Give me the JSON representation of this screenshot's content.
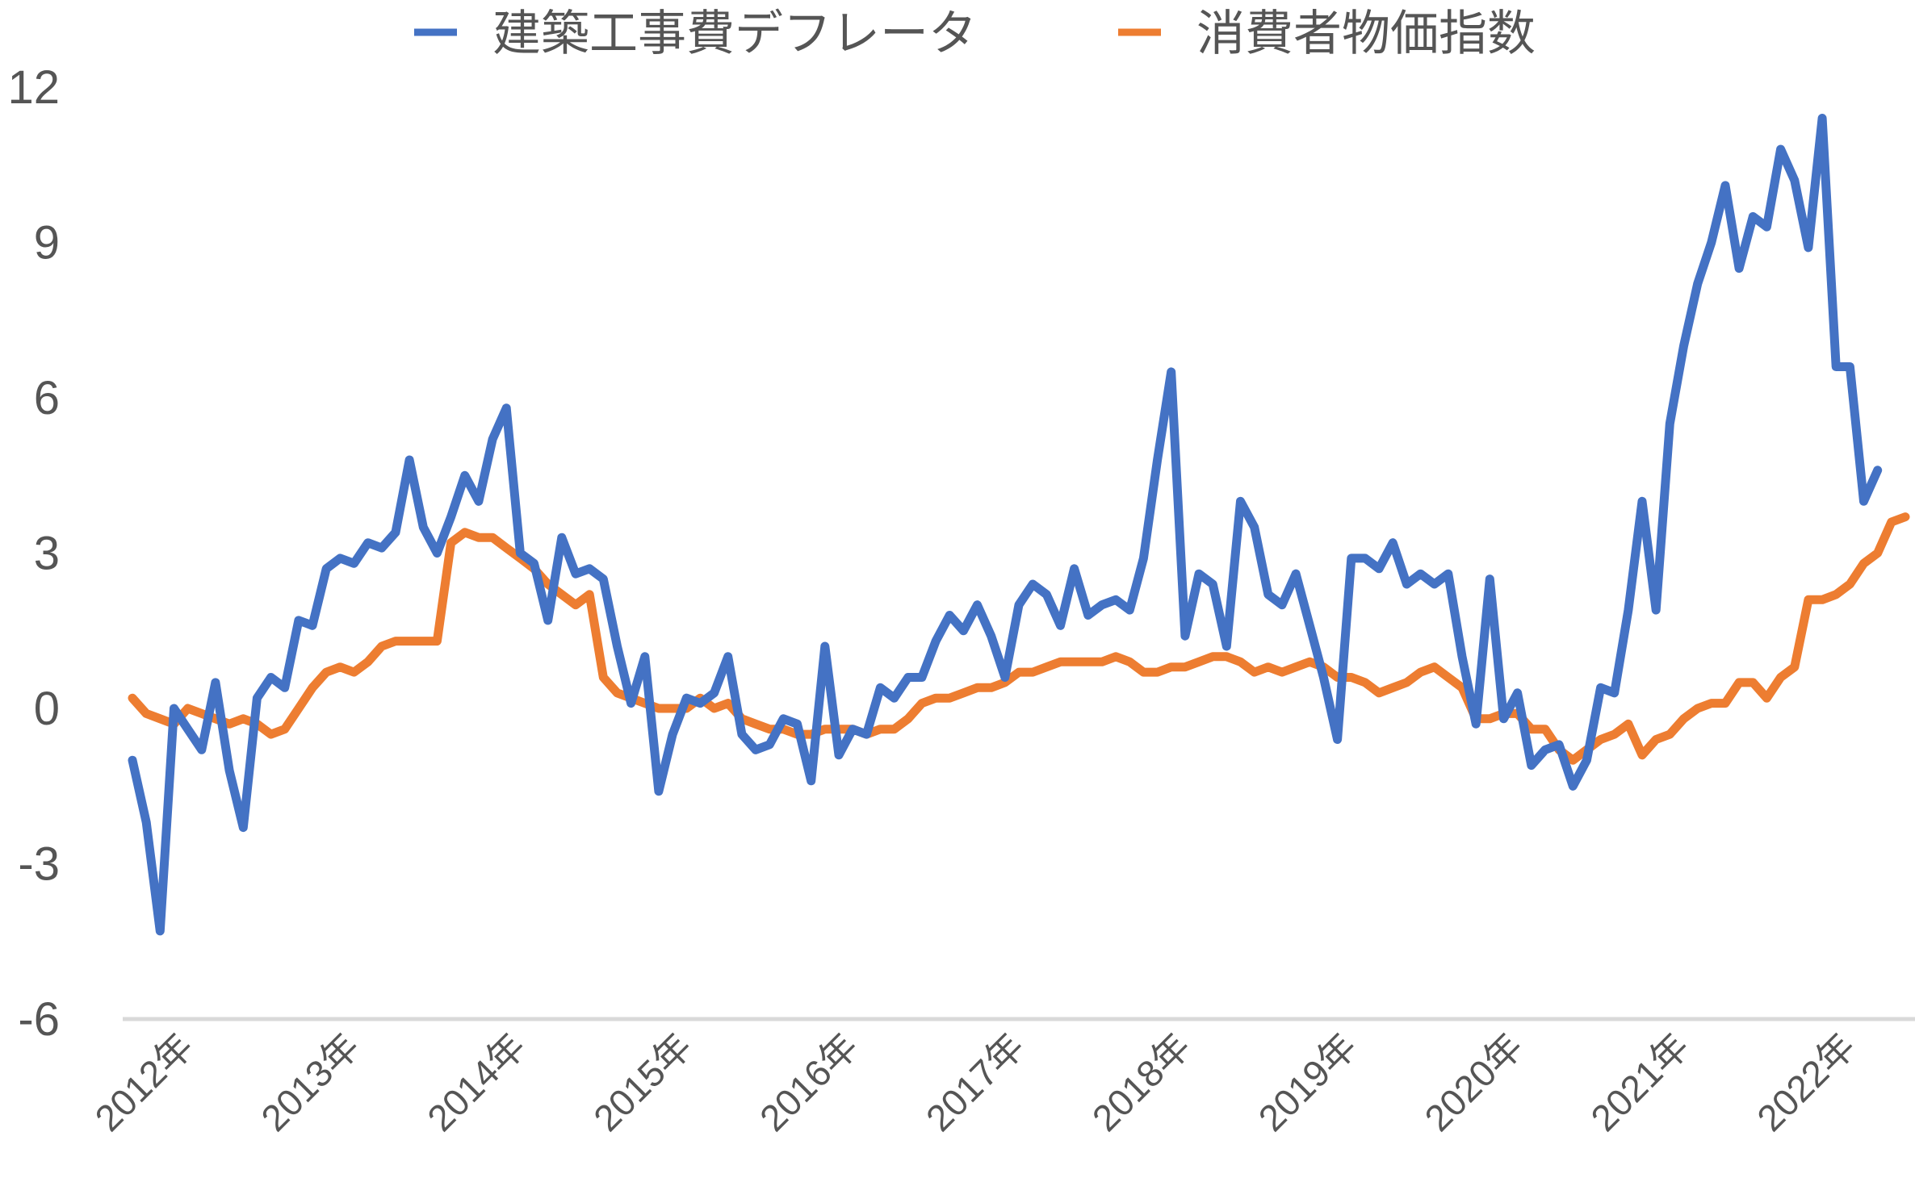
{
  "chart_data": {
    "type": "line",
    "title": "",
    "xlabel": "",
    "ylabel": "",
    "ylim": [
      -6,
      12
    ],
    "yticks": [
      "12",
      "9",
      "6",
      "3",
      "0",
      "-3",
      "-6"
    ],
    "ytick_values": [
      12,
      9,
      6,
      3,
      0,
      -3,
      -6
    ],
    "xtick_labels": [
      "2012年",
      "2013年",
      "2014年",
      "2015年",
      "2016年",
      "2017年",
      "2018年",
      "2019年",
      "2020年",
      "2021年",
      "2022年"
    ],
    "legend_position": "top-center",
    "grid": false,
    "x_start": "2012-01",
    "x_frequency": "monthly",
    "series": [
      {
        "name": "建築工事費デフレータ",
        "color": "#4472C4",
        "values": [
          -1.0,
          -2.2,
          -4.3,
          0.0,
          -0.4,
          -0.8,
          0.5,
          -1.2,
          -2.3,
          0.2,
          0.6,
          0.4,
          1.7,
          1.6,
          2.7,
          2.9,
          2.8,
          3.2,
          3.1,
          3.4,
          4.8,
          3.5,
          3.0,
          3.7,
          4.5,
          4.0,
          5.2,
          5.8,
          3.0,
          2.8,
          1.7,
          3.3,
          2.6,
          2.7,
          2.5,
          1.2,
          0.1,
          1.0,
          -1.6,
          -0.5,
          0.2,
          0.1,
          0.3,
          1.0,
          -0.5,
          -0.8,
          -0.7,
          -0.2,
          -0.3,
          -1.4,
          1.2,
          -0.9,
          -0.4,
          -0.5,
          0.4,
          0.2,
          0.6,
          0.6,
          1.3,
          1.8,
          1.5,
          2.0,
          1.4,
          0.6,
          2.0,
          2.4,
          2.2,
          1.6,
          2.7,
          1.8,
          2.0,
          2.1,
          1.9,
          2.9,
          4.8,
          6.5,
          1.4,
          2.6,
          2.4,
          1.2,
          4.0,
          3.5,
          2.2,
          2.0,
          2.6,
          1.6,
          0.6,
          -0.6,
          2.9,
          2.9,
          2.7,
          3.2,
          2.4,
          2.6,
          2.4,
          2.6,
          1.0,
          -0.3,
          2.5,
          -0.2,
          0.3,
          -1.1,
          -0.8,
          -0.7,
          -1.5,
          -1.0,
          0.4,
          0.3,
          1.9,
          4.0,
          1.9,
          5.5,
          7.0,
          8.2,
          9.0,
          10.1,
          8.5,
          9.5,
          9.3,
          10.8,
          10.2,
          8.9,
          11.4,
          6.6,
          6.6,
          4.0,
          4.6
        ]
      },
      {
        "name": "消費者物価指数",
        "color": "#ED7D31",
        "values": [
          0.2,
          -0.1,
          -0.2,
          -0.3,
          0.0,
          -0.1,
          -0.2,
          -0.3,
          -0.2,
          -0.3,
          -0.5,
          -0.4,
          0.0,
          0.4,
          0.7,
          0.8,
          0.7,
          0.9,
          1.2,
          1.3,
          1.3,
          1.3,
          1.3,
          3.2,
          3.4,
          3.3,
          3.3,
          3.1,
          2.9,
          2.7,
          2.4,
          2.2,
          2.0,
          2.2,
          0.6,
          0.3,
          0.2,
          0.1,
          0.0,
          0.0,
          0.0,
          0.2,
          0.0,
          0.1,
          -0.2,
          -0.3,
          -0.4,
          -0.4,
          -0.5,
          -0.5,
          -0.4,
          -0.4,
          -0.4,
          -0.5,
          -0.4,
          -0.4,
          -0.2,
          0.1,
          0.2,
          0.2,
          0.3,
          0.4,
          0.4,
          0.5,
          0.7,
          0.7,
          0.8,
          0.9,
          0.9,
          0.9,
          0.9,
          1.0,
          0.9,
          0.7,
          0.7,
          0.8,
          0.8,
          0.9,
          1.0,
          1.0,
          0.9,
          0.7,
          0.8,
          0.7,
          0.8,
          0.9,
          0.8,
          0.6,
          0.6,
          0.5,
          0.3,
          0.4,
          0.5,
          0.7,
          0.8,
          0.6,
          0.4,
          -0.2,
          -0.2,
          -0.1,
          -0.1,
          -0.4,
          -0.4,
          -0.8,
          -1.0,
          -0.8,
          -0.6,
          -0.5,
          -0.3,
          -0.9,
          -0.6,
          -0.5,
          -0.2,
          0.0,
          0.1,
          0.1,
          0.5,
          0.5,
          0.2,
          0.6,
          0.8,
          2.1,
          2.1,
          2.2,
          2.4,
          2.8,
          3.0,
          3.6,
          3.7
        ]
      }
    ]
  }
}
